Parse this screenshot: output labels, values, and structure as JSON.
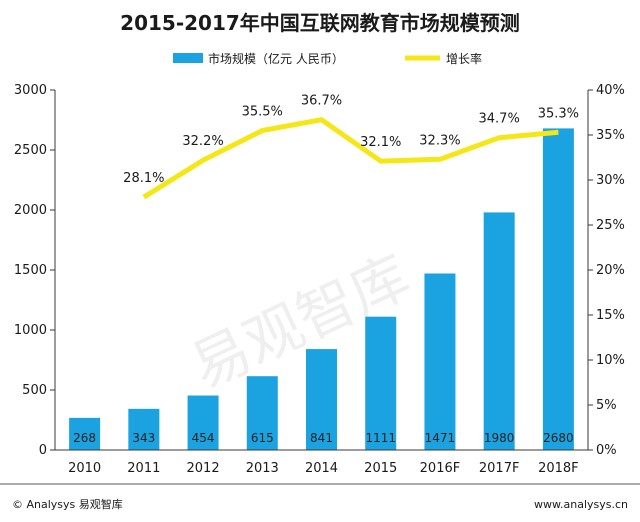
{
  "chart_data": {
    "type": "bar",
    "title": "2015-2017年中国互联网教育市场规模预测",
    "categories": [
      "2010",
      "2011",
      "2012",
      "2013",
      "2014",
      "2015",
      "2016F",
      "2017F",
      "2018F"
    ],
    "series": [
      {
        "name": "市场规模（亿元 人民币）",
        "type": "bar",
        "axis": "left",
        "values": [
          268,
          343,
          454,
          615,
          841,
          1111,
          1471,
          1980,
          2680
        ],
        "labels": [
          "268",
          "343",
          "454",
          "615",
          "841",
          "1111",
          "1471",
          "1980",
          "2680"
        ]
      },
      {
        "name": "增长率",
        "type": "line",
        "axis": "right",
        "values": [
          null,
          28.1,
          32.2,
          35.5,
          36.7,
          32.1,
          32.3,
          34.7,
          35.3
        ],
        "labels": [
          "",
          "28.1%",
          "32.2%",
          "35.5%",
          "36.7%",
          "32.1%",
          "32.3%",
          "34.7%",
          "35.3%"
        ]
      }
    ],
    "y_left": {
      "ylim": [
        0,
        3000
      ],
      "ticks": [
        "0",
        "500",
        "1000",
        "1500",
        "2000",
        "2500",
        "3000"
      ]
    },
    "y_right": {
      "ylim": [
        0,
        40
      ],
      "ticks": [
        "0%",
        "5%",
        "10%",
        "15%",
        "20%",
        "25%",
        "30%",
        "35%",
        "40%"
      ]
    },
    "grid": false,
    "legend_position": "top"
  },
  "colors": {
    "bar": "#1aa3e0",
    "line": "#f5e616",
    "axis": "#3a3a3a"
  },
  "watermark": "易观智库",
  "footer": {
    "left": "© Analysys 易观智库",
    "right": "www.analysys.cn"
  }
}
